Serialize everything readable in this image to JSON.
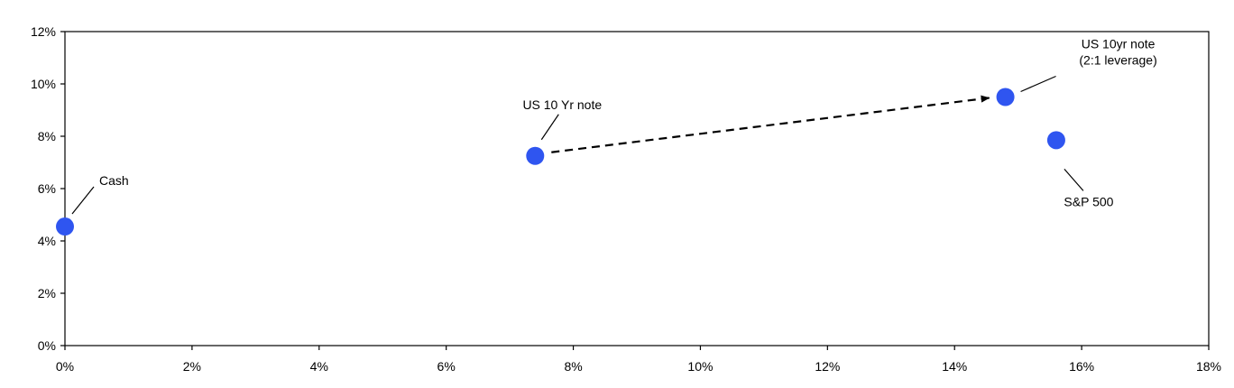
{
  "chart_data": {
    "type": "scatter",
    "title": "",
    "xlabel": "",
    "ylabel": "",
    "xlim": [
      0,
      18
    ],
    "ylim": [
      0,
      12
    ],
    "x_ticks": [
      "0%",
      "2%",
      "4%",
      "6%",
      "8%",
      "10%",
      "12%",
      "14%",
      "16%",
      "18%"
    ],
    "y_ticks": [
      "0%",
      "2%",
      "4%",
      "6%",
      "8%",
      "10%",
      "12%"
    ],
    "grid": false,
    "legend": "none",
    "marker_color": "#2f55f0",
    "points": [
      {
        "name": "cash",
        "label": [
          "Cash"
        ],
        "x": 0.0,
        "y": 4.55
      },
      {
        "name": "us-10yr-note",
        "label": [
          "US 10 Yr note"
        ],
        "x": 7.4,
        "y": 7.25
      },
      {
        "name": "us-10yr-note-leveraged",
        "label": [
          "US 10yr note",
          "(2:1 leverage)"
        ],
        "x": 14.8,
        "y": 9.5
      },
      {
        "name": "sp-500",
        "label": [
          "S&P 500"
        ],
        "x": 15.6,
        "y": 7.85
      }
    ],
    "arrow": {
      "from": "us-10yr-note",
      "to": "us-10yr-note-leveraged",
      "style": "dashed"
    }
  }
}
